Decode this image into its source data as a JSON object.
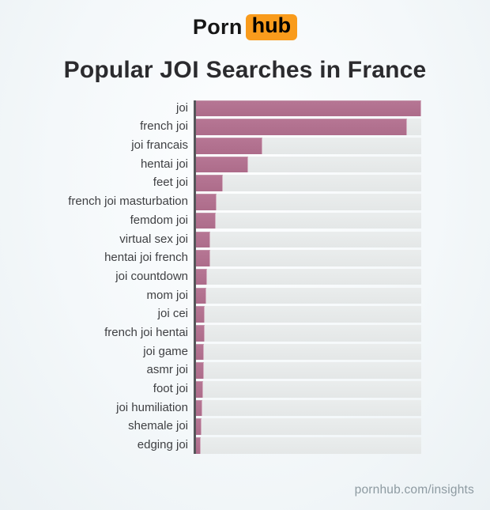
{
  "logo": {
    "text_black": "Porn",
    "text_box": "hub"
  },
  "title": {
    "prefix": "Popular ",
    "highlight": "JOI",
    "suffix": " Searches in France"
  },
  "footer": {
    "link_text": "pornhub.com/insights"
  },
  "colors": {
    "brand_orange": "#f99b1c",
    "bar": "#b27190",
    "bar_track": "#e8ebeb",
    "axis": "#55565a",
    "title_text": "#2b2b2e",
    "label_text": "#3f4043",
    "footer_text": "#8d9aa1"
  },
  "chart_data": {
    "type": "bar",
    "orientation": "horizontal",
    "title": "Popular JOI Searches in France",
    "xlabel": "",
    "ylabel": "",
    "grid": false,
    "legend": false,
    "xlim": [
      0,
      100
    ],
    "value_unit": "relative search volume, % of top term (estimated from bar lengths)",
    "categories": [
      "joi",
      "french joi",
      "joi francais",
      "hentai joi",
      "feet joi",
      "french joi masturbation",
      "femdom joi",
      "virtual sex joi",
      "hentai joi french",
      "joi countdown",
      "mom joi",
      "joi cei",
      "french joi hentai",
      "joi game",
      "asmr joi",
      "foot joi",
      "joi humiliation",
      "shemale joi",
      "edging joi"
    ],
    "values": [
      100,
      93.6,
      29.4,
      23.2,
      12.0,
      9.2,
      8.9,
      6.4,
      6.2,
      4.8,
      4.6,
      3.8,
      3.7,
      3.6,
      3.5,
      3.0,
      2.9,
      2.6,
      2.2
    ]
  }
}
